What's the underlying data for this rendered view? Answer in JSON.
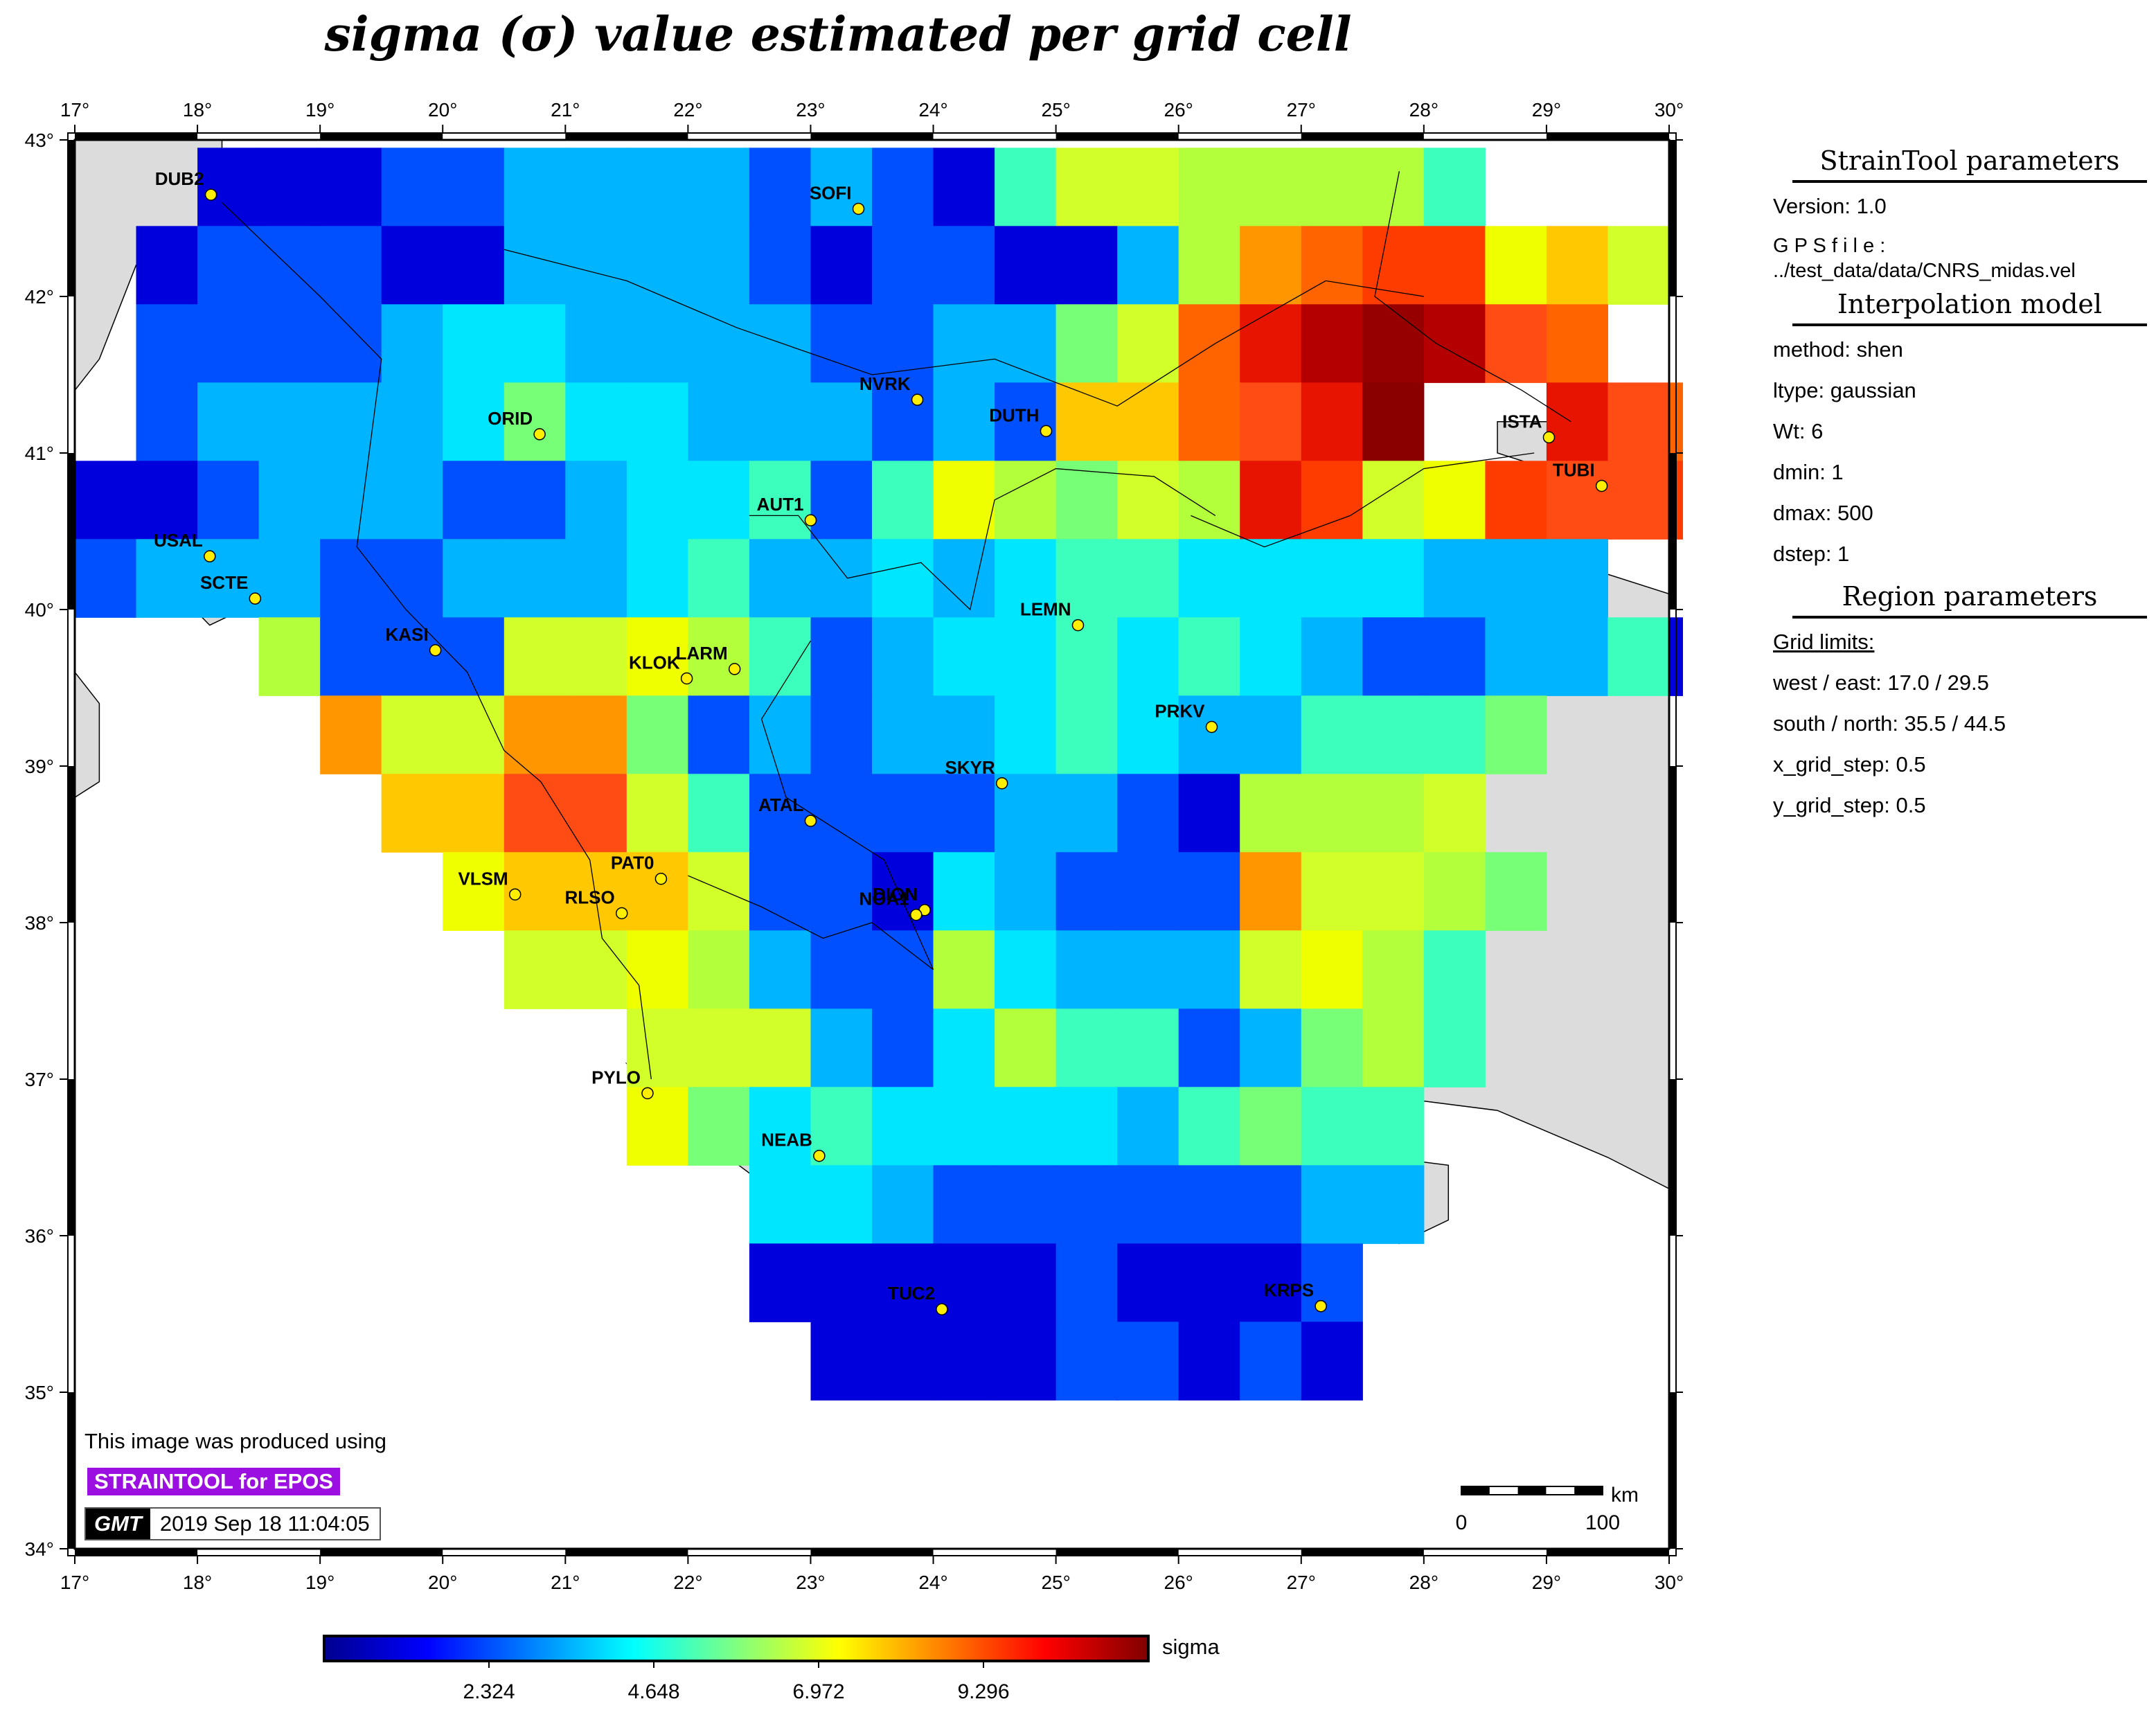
{
  "title": "sigma (σ) value estimated per grid cell",
  "map": {
    "lon_range": [
      17,
      30
    ],
    "lat_range": [
      34,
      43
    ],
    "lon_ticks": [
      17,
      18,
      19,
      20,
      21,
      22,
      23,
      24,
      25,
      26,
      27,
      28,
      29,
      30
    ],
    "lat_ticks": [
      34,
      35,
      36,
      37,
      38,
      39,
      40,
      41,
      42,
      43
    ],
    "degree_symbol": "°",
    "grid_west": 17.0,
    "grid_north": 42.95,
    "grid_cell": 0.5,
    "cell_rows": [
      "..AAABBCCCCBCBAEHHGGGGE..",
      ".ABBBAACCCCBABBAACGKLMMIJH",
      ".BBBBCDDCCCCBBCCFHLPQRQNL",
      ".BCCCCDFDDCCCBCBJJLNPS..PNLH",
      "AABCCCBBCDDEBEIGFHGPMHIMNNM",
      "BCCCBBCCCDECCDCDEEDDDDCCC",
      "...GBBBHHIGEBCDDEDEDCBBCCEA",
      "....KHHKKFBCBCCDEDCCEEEF",
      ".....JJNNHEBBBBCCBAGGGH",
      "......IJJJHBBADCBBBKHHGF",
      ".......HHIGCBBGDCCCHIGE",
      ".........HHHCBDGEEBCFGE",
      ".........IFDEDDDDCEFEE",
      "...........DDCBBBBBBCC",
      "...........AAAAABAAAB",
      "............AAAABBABA"
    ],
    "cell_colors": {
      "A": "#0000dc",
      "B": "#0050ff",
      "C": "#00b4ff",
      "D": "#00e6ff",
      "E": "#3cffbe",
      "F": "#78ff78",
      "G": "#b4ff3c",
      "H": "#d2ff2a",
      "I": "#f0ff00",
      "J": "#ffc800",
      "K": "#ff9600",
      "L": "#ff6400",
      "M": "#ff3c00",
      "N": "#ff4b14",
      "P": "#e61400",
      "Q": "#b40000",
      "R": "#960000",
      "S": "#8a0000"
    },
    "stations": [
      {
        "name": "DUB2",
        "lon": 18.11,
        "lat": 42.65
      },
      {
        "name": "SOFI",
        "lon": 23.39,
        "lat": 42.56
      },
      {
        "name": "NVRK",
        "lon": 23.87,
        "lat": 41.34
      },
      {
        "name": "DUTH",
        "lon": 24.92,
        "lat": 41.14
      },
      {
        "name": "ISTA",
        "lon": 29.02,
        "lat": 41.1
      },
      {
        "name": "TUBI",
        "lon": 29.45,
        "lat": 40.79
      },
      {
        "name": "ORID",
        "lon": 20.79,
        "lat": 41.12
      },
      {
        "name": "USAL",
        "lon": 18.1,
        "lat": 40.34
      },
      {
        "name": "SCTE",
        "lon": 18.47,
        "lat": 40.07
      },
      {
        "name": "AUT1",
        "lon": 23.0,
        "lat": 40.57
      },
      {
        "name": "LEMN",
        "lon": 25.18,
        "lat": 39.9
      },
      {
        "name": "KASI",
        "lon": 19.94,
        "lat": 39.74
      },
      {
        "name": "KLOK",
        "lon": 21.99,
        "lat": 39.56
      },
      {
        "name": "LARM",
        "lon": 22.38,
        "lat": 39.62
      },
      {
        "name": "PRKV",
        "lon": 26.27,
        "lat": 39.25
      },
      {
        "name": "SKYR",
        "lon": 24.56,
        "lat": 38.89
      },
      {
        "name": "ATAL",
        "lon": 23.0,
        "lat": 38.65
      },
      {
        "name": "PAT0",
        "lon": 21.78,
        "lat": 38.28
      },
      {
        "name": "VLSM",
        "lon": 20.59,
        "lat": 38.18
      },
      {
        "name": "RLSO",
        "lon": 21.46,
        "lat": 38.06
      },
      {
        "name": "DION",
        "lon": 23.93,
        "lat": 38.08
      },
      {
        "name": "NOA1",
        "lon": 23.86,
        "lat": 38.05
      },
      {
        "name": "PYLO",
        "lon": 21.67,
        "lat": 36.91
      },
      {
        "name": "NEAB",
        "lon": 23.07,
        "lat": 36.51
      },
      {
        "name": "TUC2",
        "lon": 24.07,
        "lat": 35.53
      },
      {
        "name": "KRPS",
        "lon": 27.16,
        "lat": 35.55
      }
    ],
    "scale_bar": {
      "unit": "km",
      "start": "0",
      "end": "100"
    }
  },
  "colorbar": {
    "title": "sigma",
    "ticks": [
      "2.324",
      "4.648",
      "6.972",
      "9.296"
    ],
    "tick_values": [
      2.324,
      4.648,
      6.972,
      9.296
    ],
    "range": [
      0,
      11.62
    ],
    "stops": [
      "#00008f",
      "#0000ff",
      "#0080ff",
      "#00ffff",
      "#80ff80",
      "#ffff00",
      "#ff8000",
      "#ff0000",
      "#800000"
    ]
  },
  "info_panel": {
    "strain_header": "StrainTool parameters",
    "version": "Version: 1.0",
    "gps_file": "G P S  f i l e : ../test_data/data/CNRS_midas.vel",
    "interp_header": "Interpolation model",
    "method": "method: shen",
    "ltype": "ltype: gaussian",
    "wt": "Wt: 6",
    "dmin": "dmin: 1",
    "dmax": "dmax: 500",
    "dstep": "dstep: 1",
    "region_header": "Region parameters",
    "grid_limits": "Grid limits:",
    "west_east": "west / east: 17.0 / 29.5",
    "south_north": "south / north: 35.5 / 44.5",
    "x_step": "x_grid_step: 0.5",
    "y_step": "y_grid_step: 0.5"
  },
  "credit": {
    "line": "This image was produced using",
    "badge": "STRAINTOOL for EPOS",
    "logo": "GMT",
    "timestamp": "2019 Sep 18 11:04:05"
  }
}
